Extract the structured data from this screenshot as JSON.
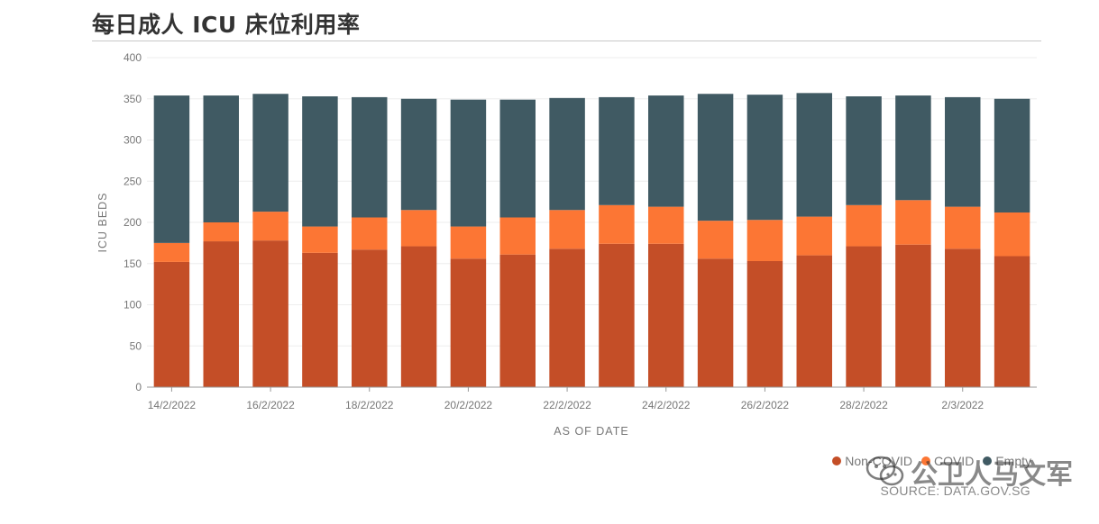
{
  "title": "每日成人 ICU 床位利用率",
  "source": "SOURCE: DATA.GOV.SG",
  "watermark_text": "公卫人马文军",
  "colors": {
    "non_covid": "#c44e27",
    "covid": "#fc7634",
    "empty": "#405a63"
  },
  "chart_data": {
    "type": "bar",
    "stacked": true,
    "xlabel": "AS OF DATE",
    "ylabel": "ICU BEDS",
    "ylim": [
      0,
      400
    ],
    "yticks": [
      0,
      50,
      100,
      150,
      200,
      250,
      300,
      350,
      400
    ],
    "legend_position": "bottom-right",
    "categories": [
      "14/2/2022",
      "15/2/2022",
      "16/2/2022",
      "17/2/2022",
      "18/2/2022",
      "19/2/2022",
      "20/2/2022",
      "21/2/2022",
      "22/2/2022",
      "23/2/2022",
      "24/2/2022",
      "25/2/2022",
      "26/2/2022",
      "27/2/2022",
      "28/2/2022",
      "1/3/2022",
      "2/3/2022",
      "3/3/2022"
    ],
    "xtick_labels": [
      "14/2/2022",
      "",
      "16/2/2022",
      "",
      "18/2/2022",
      "",
      "20/2/2022",
      "",
      "22/2/2022",
      "",
      "24/2/2022",
      "",
      "26/2/2022",
      "",
      "28/2/2022",
      "",
      "2/3/2022",
      ""
    ],
    "series": [
      {
        "name": "Non-COVID",
        "color": "#c44e27",
        "values": [
          152,
          177,
          178,
          163,
          167,
          171,
          156,
          161,
          168,
          174,
          174,
          156,
          153,
          160,
          171,
          173,
          168,
          159
        ]
      },
      {
        "name": "COVID",
        "color": "#fc7634",
        "values": [
          23,
          23,
          35,
          32,
          39,
          44,
          39,
          45,
          47,
          47,
          45,
          46,
          50,
          47,
          50,
          54,
          51,
          53
        ]
      },
      {
        "name": "Empty",
        "color": "#405a63",
        "values": [
          179,
          154,
          143,
          158,
          146,
          135,
          154,
          143,
          136,
          131,
          135,
          154,
          152,
          150,
          132,
          127,
          133,
          138
        ]
      }
    ]
  }
}
